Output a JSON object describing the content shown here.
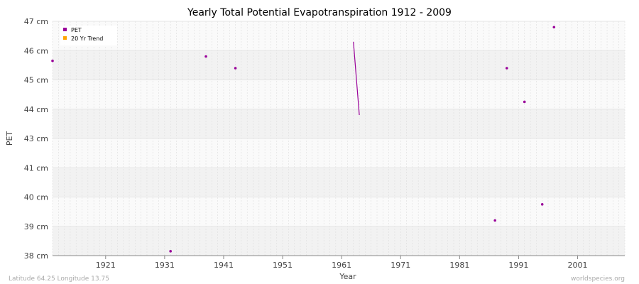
{
  "chart_data": {
    "type": "scatter",
    "title": "Yearly Total Potential Evapotranspiration 1912 - 2009",
    "xlabel": "Year",
    "ylabel": "PET",
    "xlim": [
      1912,
      2009
    ],
    "x_ticks": [
      1921,
      1931,
      1941,
      1951,
      1961,
      1971,
      1981,
      1991,
      2001
    ],
    "y_ticks": [
      {
        "value": 38,
        "label": "38 cm"
      },
      {
        "value": 39,
        "label": "39 cm"
      },
      {
        "value": 40,
        "label": "40 cm"
      },
      {
        "value": 41,
        "label": "41 cm"
      },
      {
        "value": 43,
        "label": "43 cm"
      },
      {
        "value": 44,
        "label": "44 cm"
      },
      {
        "value": 45,
        "label": "45 cm"
      },
      {
        "value": 46,
        "label": "46 cm"
      },
      {
        "value": 47,
        "label": "47 cm"
      }
    ],
    "grid": true,
    "legend": {
      "position": "top-left",
      "entries": [
        {
          "label": "PET",
          "color": "#990099"
        },
        {
          "label": "20 Yr Trend",
          "color": "#ffa500"
        }
      ]
    },
    "series": [
      {
        "name": "PET",
        "color": "#990099",
        "points": [
          {
            "x": 1912,
            "y": 45.65
          },
          {
            "x": 1932,
            "y": 38.15
          },
          {
            "x": 1938,
            "y": 45.8
          },
          {
            "x": 1943,
            "y": 45.4
          },
          {
            "x": 1987,
            "y": 39.2
          },
          {
            "x": 1989,
            "y": 45.4
          },
          {
            "x": 1992,
            "y": 44.25
          },
          {
            "x": 1995,
            "y": 39.75
          },
          {
            "x": 1997,
            "y": 46.8
          }
        ],
        "segments": [
          [
            {
              "x": 1963,
              "y": 46.3
            },
            {
              "x": 1964,
              "y": 43.8
            }
          ]
        ]
      }
    ]
  },
  "footer": {
    "left": "Latitude 64.25 Longitude 13.75",
    "right": "worldspecies.org"
  }
}
